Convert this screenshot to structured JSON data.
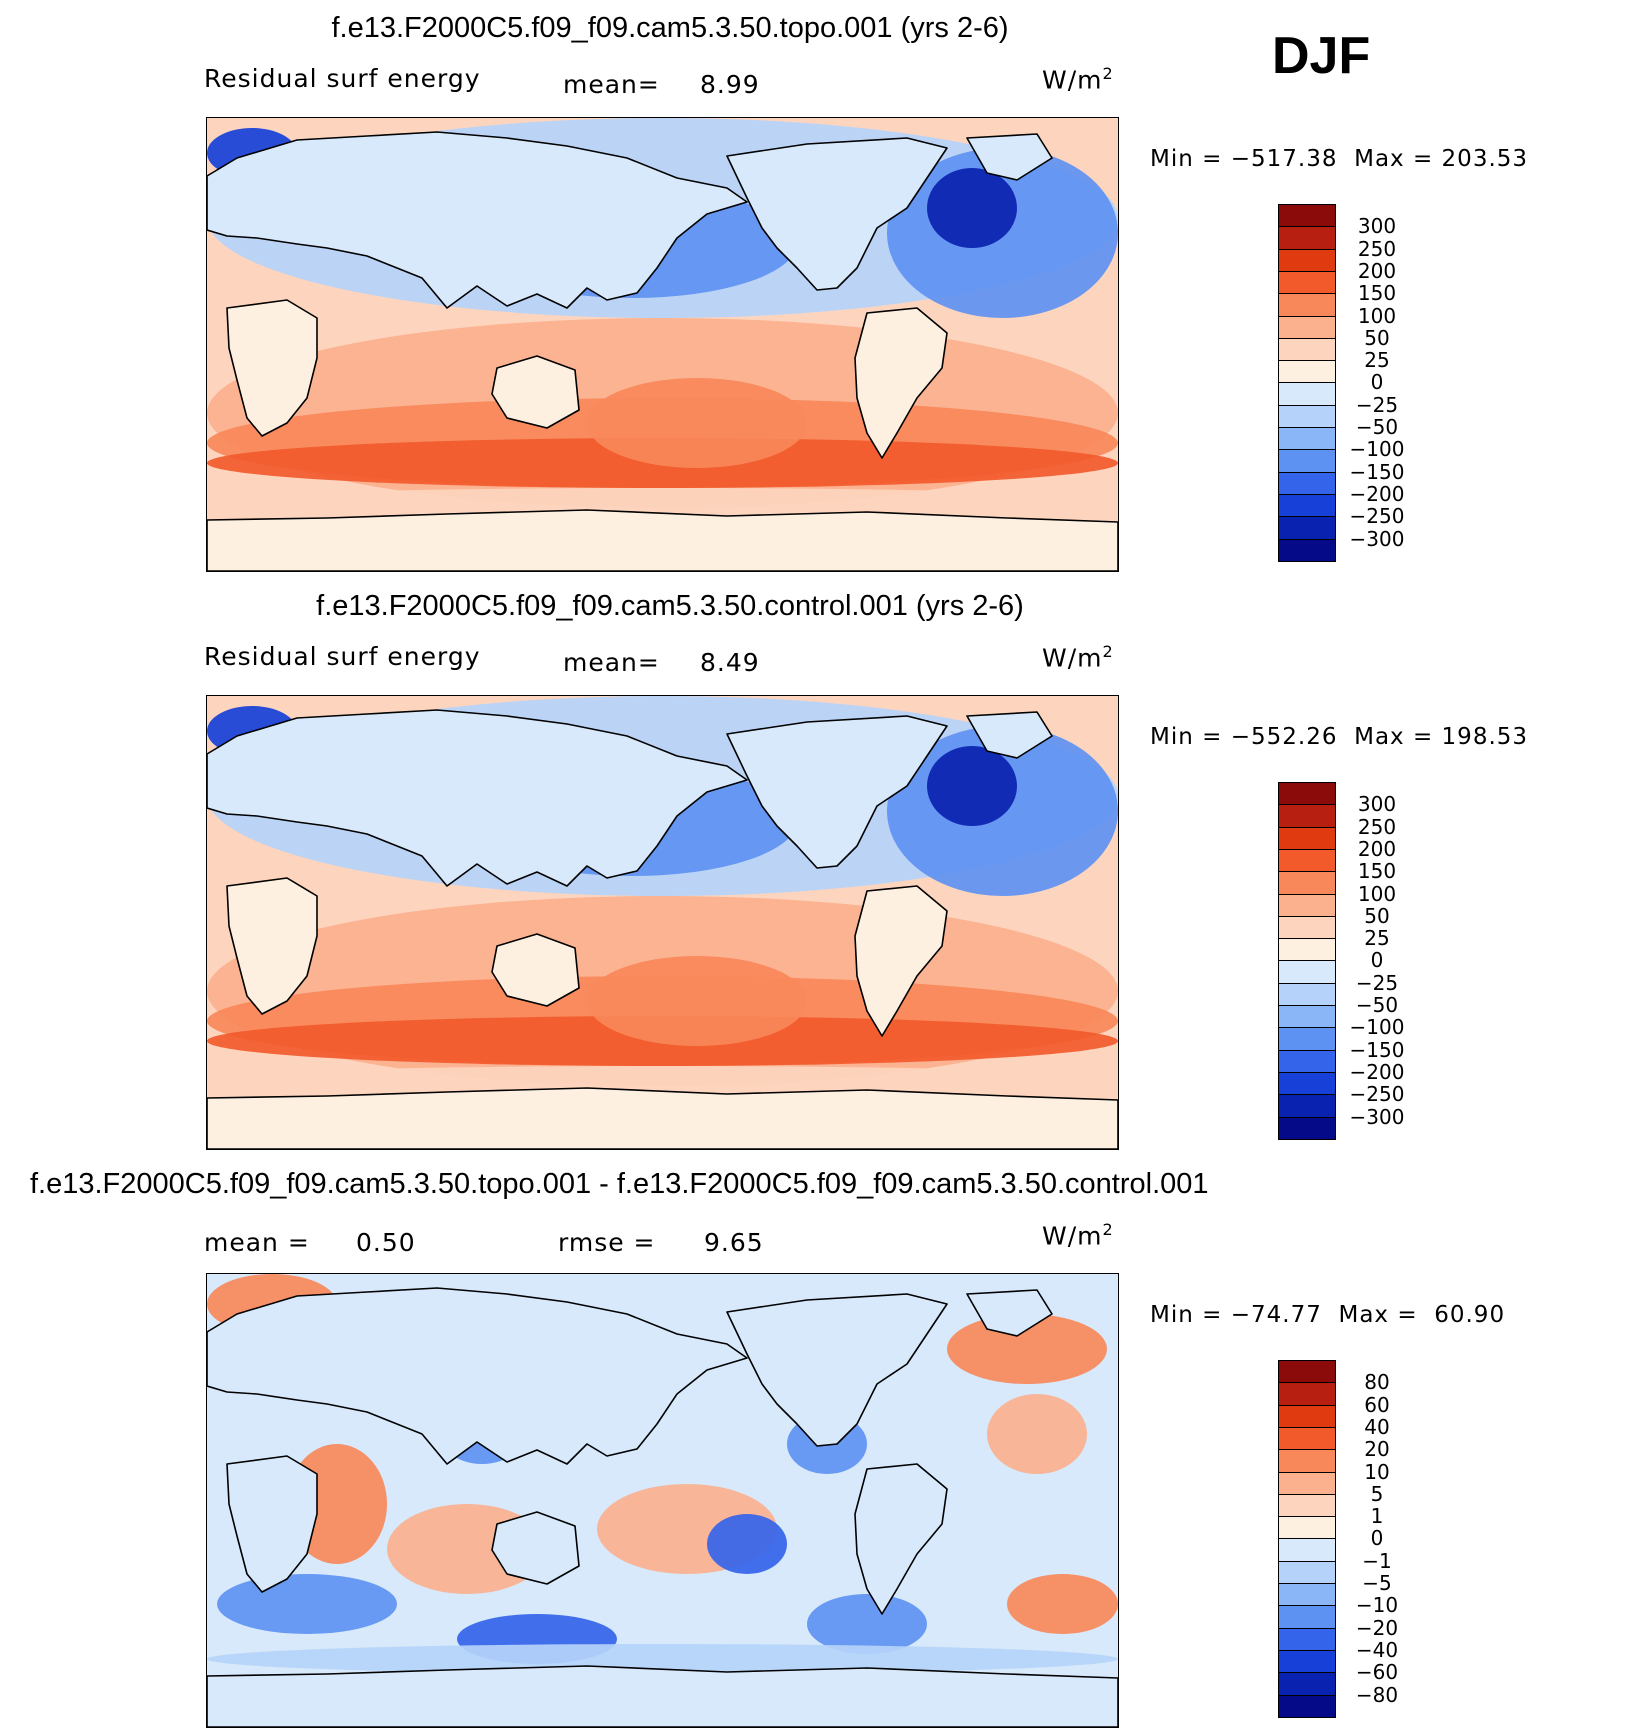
{
  "season": "DJF",
  "chart_data": [
    {
      "type": "heatmap",
      "title": "f.e13.F2000C5.f09_f09.cam5.3.50.topo.001 (yrs 2-6)",
      "variable": "Residual surf energy",
      "mean_label": "mean=",
      "mean": "8.99",
      "units_base": "W/m",
      "units_exp": "2",
      "min_label": "Min = ",
      "min": "−517.38",
      "max_label": "Max = ",
      "max": "203.53",
      "levels": [
        "300",
        "250",
        "200",
        "150",
        "100",
        "50",
        "25",
        "0",
        "−25",
        "−50",
        "−100",
        "−150",
        "−200",
        "−250",
        "−300"
      ],
      "colors": [
        "#8b0a0a",
        "#b72010",
        "#df3a10",
        "#f25a2c",
        "#f8885a",
        "#fbb08e",
        "#fdd5be",
        "#fdf0e1",
        "#d7e9fb",
        "#b5d3fa",
        "#8ab6f8",
        "#5e92f2",
        "#3464ea",
        "#1640d8",
        "#0a22b0",
        "#040a88"
      ]
    },
    {
      "type": "heatmap",
      "title": "f.e13.F2000C5.f09_f09.cam5.3.50.control.001 (yrs 2-6)",
      "variable": "Residual surf energy",
      "mean_label": "mean=",
      "mean": "8.49",
      "units_base": "W/m",
      "units_exp": "2",
      "min_label": "Min = ",
      "min": "−552.26",
      "max_label": "Max = ",
      "max": "198.53",
      "levels": [
        "300",
        "250",
        "200",
        "150",
        "100",
        "50",
        "25",
        "0",
        "−25",
        "−50",
        "−100",
        "−150",
        "−200",
        "−250",
        "−300"
      ],
      "colors": [
        "#8b0a0a",
        "#b72010",
        "#df3a10",
        "#f25a2c",
        "#f8885a",
        "#fbb08e",
        "#fdd5be",
        "#fdf0e1",
        "#d7e9fb",
        "#b5d3fa",
        "#8ab6f8",
        "#5e92f2",
        "#3464ea",
        "#1640d8",
        "#0a22b0",
        "#040a88"
      ]
    },
    {
      "type": "heatmap",
      "title": "f.e13.F2000C5.f09_f09.cam5.3.50.topo.001 - f.e13.F2000C5.f09_f09.cam5.3.50.control.001",
      "mean_label": "mean =",
      "mean": "0.50",
      "rmse_label": "rmse =",
      "rmse": "9.65",
      "units_base": "W/m",
      "units_exp": "2",
      "min_label": "Min = ",
      "min": "−74.77",
      "max_label": "Max = ",
      "max": "60.90",
      "levels": [
        "80",
        "60",
        "40",
        "20",
        "10",
        "5",
        "1",
        "0",
        "−1",
        "−5",
        "−10",
        "−20",
        "−40",
        "−60",
        "−80"
      ],
      "colors": [
        "#8b0a0a",
        "#b72010",
        "#df3a10",
        "#f25a2c",
        "#f8885a",
        "#fbb08e",
        "#fdd5be",
        "#fdf0e1",
        "#d7e9fb",
        "#b5d3fa",
        "#8ab6f8",
        "#5e92f2",
        "#3464ea",
        "#1640d8",
        "#0a22b0",
        "#040a88"
      ]
    }
  ]
}
